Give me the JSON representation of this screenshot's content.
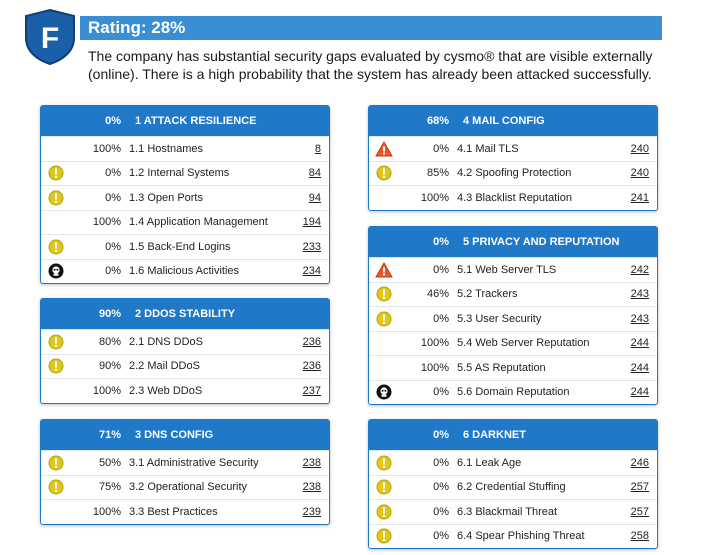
{
  "header": {
    "logo_letter": "F",
    "rating_text": "Rating: 28%",
    "description": "The company has substantial security gaps evaluated by cysmo® that are visible externally (online). There is a high probability that the system has already been attacked successfully."
  },
  "colors": {
    "header_blue": "#1f78c8",
    "rating_blue": "#3a8fd4",
    "warning_yellow": "#e0c81a",
    "danger_orange": "#e8582a",
    "malicious_black": "#111111"
  },
  "panels": [
    {
      "id": "attack-resilience",
      "percent": "0%",
      "title": "1 ATTACK RESILIENCE",
      "rows": [
        {
          "icon": "none",
          "percent": "100%",
          "label": "1.1 Hostnames",
          "page": "8"
        },
        {
          "icon": "warning",
          "percent": "0%",
          "label": "1.2 Internal Systems",
          "page": "84"
        },
        {
          "icon": "warning",
          "percent": "0%",
          "label": "1.3 Open Ports",
          "page": "94"
        },
        {
          "icon": "none",
          "percent": "100%",
          "label": "1.4 Application Management",
          "page": "194"
        },
        {
          "icon": "warning",
          "percent": "0%",
          "label": "1.5 Back-End Logins",
          "page": "233"
        },
        {
          "icon": "malicious",
          "percent": "0%",
          "label": "1.6 Malicious Activities",
          "page": "234"
        }
      ]
    },
    {
      "id": "ddos-stability",
      "percent": "90%",
      "title": "2 DDOS STABILITY",
      "rows": [
        {
          "icon": "warning",
          "percent": "80%",
          "label": "2.1 DNS DDoS",
          "page": "236"
        },
        {
          "icon": "warning",
          "percent": "90%",
          "label": "2.2 Mail DDoS",
          "page": "236"
        },
        {
          "icon": "none",
          "percent": "100%",
          "label": "2.3 Web DDoS",
          "page": "237"
        }
      ]
    },
    {
      "id": "dns-config",
      "percent": "71%",
      "title": "3 DNS CONFIG",
      "rows": [
        {
          "icon": "warning",
          "percent": "50%",
          "label": "3.1 Administrative Security",
          "page": "238"
        },
        {
          "icon": "warning",
          "percent": "75%",
          "label": "3.2 Operational Security",
          "page": "238"
        },
        {
          "icon": "none",
          "percent": "100%",
          "label": "3.3 Best Practices",
          "page": "239"
        }
      ]
    },
    {
      "id": "mail-config",
      "percent": "68%",
      "title": "4 MAIL CONFIG",
      "rows": [
        {
          "icon": "danger",
          "percent": "0%",
          "label": "4.1 Mail TLS",
          "page": "240"
        },
        {
          "icon": "warning",
          "percent": "85%",
          "label": "4.2 Spoofing Protection",
          "page": "240"
        },
        {
          "icon": "none",
          "percent": "100%",
          "label": "4.3 Blacklist Reputation",
          "page": "241"
        }
      ]
    },
    {
      "id": "privacy-reputation",
      "percent": "0%",
      "title": "5 PRIVACY AND REPUTATION",
      "rows": [
        {
          "icon": "danger",
          "percent": "0%",
          "label": "5.1 Web Server TLS",
          "page": "242"
        },
        {
          "icon": "warning",
          "percent": "46%",
          "label": "5.2 Trackers",
          "page": "243"
        },
        {
          "icon": "warning",
          "percent": "0%",
          "label": "5.3 User Security",
          "page": "243"
        },
        {
          "icon": "none",
          "percent": "100%",
          "label": "5.4 Web Server Reputation",
          "page": "244"
        },
        {
          "icon": "none",
          "percent": "100%",
          "label": "5.5 AS Reputation",
          "page": "244"
        },
        {
          "icon": "malicious",
          "percent": "0%",
          "label": "5.6 Domain Reputation",
          "page": "244"
        }
      ]
    },
    {
      "id": "darknet",
      "percent": "0%",
      "title": "6 DARKNET",
      "rows": [
        {
          "icon": "warning",
          "percent": "0%",
          "label": "6.1 Leak Age",
          "page": "246"
        },
        {
          "icon": "warning",
          "percent": "0%",
          "label": "6.2 Credential Stuffing",
          "page": "257"
        },
        {
          "icon": "warning",
          "percent": "0%",
          "label": "6.3 Blackmail Threat",
          "page": "257"
        },
        {
          "icon": "warning",
          "percent": "0%",
          "label": "6.4 Spear Phishing Threat",
          "page": "258"
        }
      ]
    }
  ]
}
